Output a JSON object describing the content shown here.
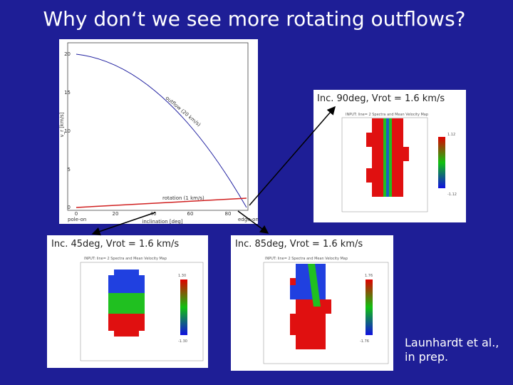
{
  "title": "Why don‘t we see more rotating outflows?",
  "plot": {
    "y_label": "v_r [km/s]",
    "x_label": "inclination [deg]",
    "yticks": [
      "20",
      "15",
      "10",
      "5",
      "0"
    ],
    "xticks": [
      "0",
      "20",
      "40",
      "60",
      "80"
    ],
    "x_left": "pole-on",
    "x_right": "edge-on",
    "outflow_label": "outflow (20 km/s)",
    "rotation_label": "rotation (1 km/s)"
  },
  "panels": [
    {
      "caption": "Inc. 90deg, Vrot = 1.6 km/s",
      "map_title": "INPUT: line= 2 Spectra and Mean Velocity Map",
      "cbar_top": "1.12",
      "cbar_bottom": "-1.12"
    },
    {
      "caption": "Inc. 45deg, Vrot = 1.6 km/s",
      "map_title": "INPUT: line= 2 Spectra and Mean Velocity Map",
      "cbar_top": "1.30",
      "cbar_bottom": "-1.30"
    },
    {
      "caption": "Inc. 85deg, Vrot = 1.6 km/s",
      "map_title": "INPUT: line= 2 Spectra and Mean Velocity Map",
      "cbar_top": "1.76",
      "cbar_bottom": "-1.76"
    }
  ],
  "citation": [
    "Launhardt et al.,",
    "in prep."
  ]
}
